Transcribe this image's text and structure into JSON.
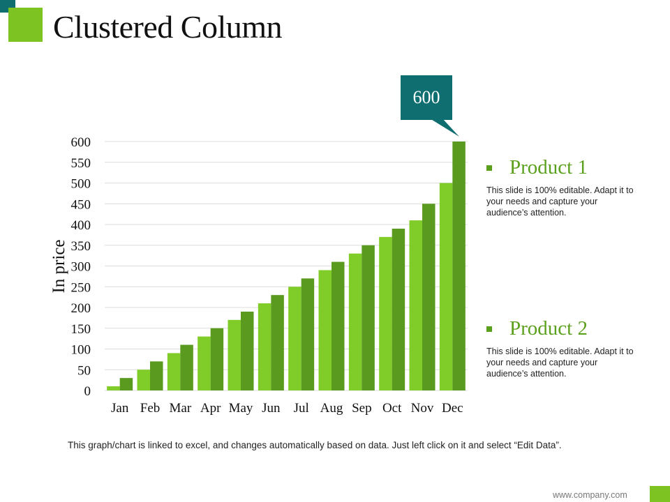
{
  "slide": {
    "title": "Clustered Column",
    "footnote": "This graph/chart is linked to excel, and changes automatically based on data. Just left click on it and select “Edit Data”.",
    "website": "www.company.com",
    "accent_green": "#7dc322",
    "accent_teal": "#0f6e6f"
  },
  "callout": {
    "value": "600"
  },
  "legend": [
    {
      "title": "Product 1",
      "description": "This slide is 100% editable. Adapt it to your needs and capture your audience’s attention."
    },
    {
      "title": "Product 2",
      "description": "This slide is 100% editable. Adapt it to your needs and capture your audience’s attention."
    }
  ],
  "chart_data": {
    "type": "bar",
    "title": "",
    "xlabel": "",
    "ylabel": "In price",
    "ylim": [
      0,
      600
    ],
    "yticks": [
      0,
      50,
      100,
      150,
      200,
      250,
      300,
      350,
      400,
      450,
      500,
      550,
      600
    ],
    "grid": true,
    "categories": [
      "Jan",
      "Feb",
      "Mar",
      "Apr",
      "May",
      "Jun",
      "Jul",
      "Aug",
      "Sep",
      "Oct",
      "Nov",
      "Dec"
    ],
    "series": [
      {
        "name": "Product 1",
        "color": "#80cc28",
        "values": [
          10,
          50,
          90,
          130,
          170,
          210,
          250,
          290,
          330,
          370,
          410,
          500
        ]
      },
      {
        "name": "Product 2",
        "color": "#5a9a1f",
        "values": [
          30,
          70,
          110,
          150,
          190,
          230,
          270,
          310,
          350,
          390,
          450,
          600
        ]
      }
    ]
  }
}
